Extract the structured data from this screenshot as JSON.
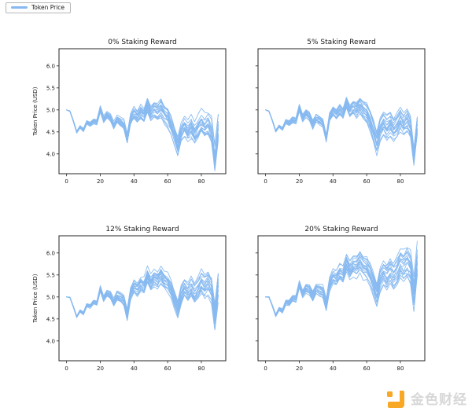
{
  "figure": {
    "background": "#ffffff",
    "line_color": "#87b9f0",
    "axis_color": "#262626"
  },
  "legend": {
    "label": "Token Price"
  },
  "watermark": {
    "text": "金色财经",
    "logo_color": "#f9a825",
    "text_color": "#d7d7d7"
  },
  "chart_data": [
    {
      "type": "line",
      "title": "0% Staking Reward",
      "xlabel": "",
      "ylabel": "Token Price (USD)",
      "legend": "Token Price",
      "grid": false,
      "x": [
        0,
        2,
        4,
        6,
        8,
        10,
        12,
        14,
        16,
        18,
        20,
        22,
        24,
        26,
        28,
        30,
        32,
        34,
        36,
        38,
        40,
        42,
        44,
        46,
        48,
        50,
        52,
        54,
        56,
        58,
        60,
        62,
        64,
        66,
        68,
        70,
        72,
        74,
        76,
        78,
        80,
        82,
        84,
        86,
        88,
        90
      ],
      "mean_values": [
        5.0,
        4.97,
        4.75,
        4.5,
        4.62,
        4.55,
        4.72,
        4.68,
        4.75,
        4.72,
        5.02,
        4.78,
        4.88,
        4.82,
        4.64,
        4.78,
        4.72,
        4.65,
        4.32,
        4.78,
        4.92,
        4.85,
        4.95,
        4.88,
        5.12,
        4.92,
        5.02,
        4.96,
        5.05,
        4.92,
        4.85,
        4.68,
        4.45,
        4.18,
        4.48,
        4.62,
        4.5,
        4.6,
        4.45,
        4.55,
        4.68,
        4.58,
        4.66,
        4.5,
        3.85,
        4.55
      ],
      "n_simulation_paths": 18,
      "spread_coef": 0.004,
      "xlim": [
        -4.5,
        94.5
      ],
      "ylim": [
        3.55,
        6.39
      ],
      "xticks": [
        0,
        20,
        40,
        60,
        80
      ],
      "xtick_labels": [
        "0",
        "20",
        "40",
        "60",
        "80"
      ],
      "yticks": [
        4.0,
        4.5,
        5.0,
        5.5,
        6.0
      ],
      "ytick_labels": [
        "4.0",
        "4.5",
        "5.0",
        "5.5",
        "6.0"
      ],
      "ytick_labels_visible": true
    },
    {
      "type": "line",
      "title": "5% Staking Reward",
      "xlabel": "",
      "ylabel": "",
      "legend": "Token Price",
      "grid": false,
      "x": [
        0,
        2,
        4,
        6,
        8,
        10,
        12,
        14,
        16,
        18,
        20,
        22,
        24,
        26,
        28,
        30,
        32,
        34,
        36,
        38,
        40,
        42,
        44,
        46,
        48,
        50,
        52,
        54,
        56,
        58,
        60,
        62,
        64,
        66,
        68,
        70,
        72,
        74,
        76,
        78,
        80,
        82,
        84,
        86,
        88,
        90
      ],
      "mean_values": [
        5.0,
        4.97,
        4.76,
        4.52,
        4.63,
        4.57,
        4.74,
        4.7,
        4.77,
        4.75,
        5.05,
        4.81,
        4.91,
        4.85,
        4.67,
        4.81,
        4.76,
        4.69,
        4.36,
        4.83,
        4.97,
        4.9,
        5.01,
        4.94,
        5.18,
        4.98,
        5.08,
        5.02,
        5.12,
        4.99,
        4.92,
        4.75,
        4.52,
        4.25,
        4.55,
        4.7,
        4.58,
        4.68,
        4.53,
        4.63,
        4.77,
        4.66,
        4.75,
        4.59,
        3.95,
        4.65
      ],
      "n_simulation_paths": 18,
      "spread_coef": 0.004,
      "xlim": [
        -4.5,
        94.5
      ],
      "ylim": [
        3.55,
        6.39
      ],
      "xticks": [
        0,
        20,
        40,
        60,
        80
      ],
      "xtick_labels": [
        "0",
        "20",
        "40",
        "60",
        "80"
      ],
      "yticks": [
        4.0,
        4.5,
        5.0,
        5.5,
        6.0
      ],
      "ytick_labels": [
        "4.0",
        "4.5",
        "5.0",
        "5.5",
        "6.0"
      ],
      "ytick_labels_visible": false
    },
    {
      "type": "line",
      "title": "12% Staking Reward",
      "xlabel": "",
      "ylabel": "Token Price (USD)",
      "legend": "Token Price",
      "grid": false,
      "x": [
        0,
        2,
        4,
        6,
        8,
        10,
        12,
        14,
        16,
        18,
        20,
        22,
        24,
        26,
        28,
        30,
        32,
        34,
        36,
        38,
        40,
        42,
        44,
        46,
        48,
        50,
        52,
        54,
        56,
        58,
        60,
        62,
        64,
        66,
        68,
        70,
        72,
        74,
        76,
        78,
        80,
        82,
        84,
        86,
        88,
        90
      ],
      "mean_values": [
        5.0,
        4.99,
        4.78,
        4.55,
        4.68,
        4.63,
        4.82,
        4.79,
        4.88,
        4.86,
        5.18,
        4.96,
        5.07,
        5.03,
        4.86,
        5.02,
        4.98,
        4.92,
        4.61,
        5.08,
        5.24,
        5.19,
        5.3,
        5.25,
        5.5,
        5.32,
        5.44,
        5.39,
        5.5,
        5.38,
        5.33,
        5.18,
        4.96,
        4.71,
        5.02,
        5.18,
        5.08,
        5.19,
        5.06,
        5.17,
        5.32,
        5.24,
        5.33,
        5.19,
        4.55,
        5.27
      ],
      "n_simulation_paths": 18,
      "spread_coef": 0.004,
      "xlim": [
        -4.5,
        94.5
      ],
      "ylim": [
        3.55,
        6.39
      ],
      "xticks": [
        0,
        20,
        40,
        60,
        80
      ],
      "xtick_labels": [
        "0",
        "20",
        "40",
        "60",
        "80"
      ],
      "yticks": [
        4.0,
        4.5,
        5.0,
        5.5,
        6.0
      ],
      "ytick_labels": [
        "4.0",
        "4.5",
        "5.0",
        "5.5",
        "6.0"
      ],
      "ytick_labels_visible": true
    },
    {
      "type": "line",
      "title": "20% Staking Reward",
      "xlabel": "",
      "ylabel": "",
      "legend": "Token Price",
      "grid": false,
      "x": [
        0,
        2,
        4,
        6,
        8,
        10,
        12,
        14,
        16,
        18,
        20,
        22,
        24,
        26,
        28,
        30,
        32,
        34,
        36,
        38,
        40,
        42,
        44,
        46,
        48,
        50,
        52,
        54,
        56,
        58,
        60,
        62,
        64,
        66,
        68,
        70,
        72,
        74,
        76,
        78,
        80,
        82,
        84,
        86,
        88,
        90
      ],
      "mean_values": [
        5.0,
        5.0,
        4.8,
        4.58,
        4.73,
        4.69,
        4.88,
        4.87,
        4.97,
        4.96,
        5.29,
        5.08,
        5.2,
        5.17,
        5.02,
        5.19,
        5.15,
        5.11,
        4.81,
        5.29,
        5.46,
        5.42,
        5.54,
        5.5,
        5.77,
        5.6,
        5.72,
        5.69,
        5.81,
        5.7,
        5.66,
        5.52,
        5.31,
        5.07,
        5.4,
        5.57,
        5.47,
        5.6,
        5.48,
        5.6,
        5.76,
        5.69,
        5.79,
        5.66,
        5.04,
        5.77
      ],
      "n_simulation_paths": 18,
      "spread_coef": 0.005,
      "xlim": [
        -4.5,
        94.5
      ],
      "ylim": [
        3.55,
        6.39
      ],
      "xticks": [
        0,
        20,
        40,
        60,
        80
      ],
      "xtick_labels": [
        "0",
        "20",
        "40",
        "60",
        "80"
      ],
      "yticks": [
        4.0,
        4.5,
        5.0,
        5.5,
        6.0
      ],
      "ytick_labels": [
        "4.0",
        "4.5",
        "5.0",
        "5.5",
        "6.0"
      ],
      "ytick_labels_visible": false
    }
  ]
}
